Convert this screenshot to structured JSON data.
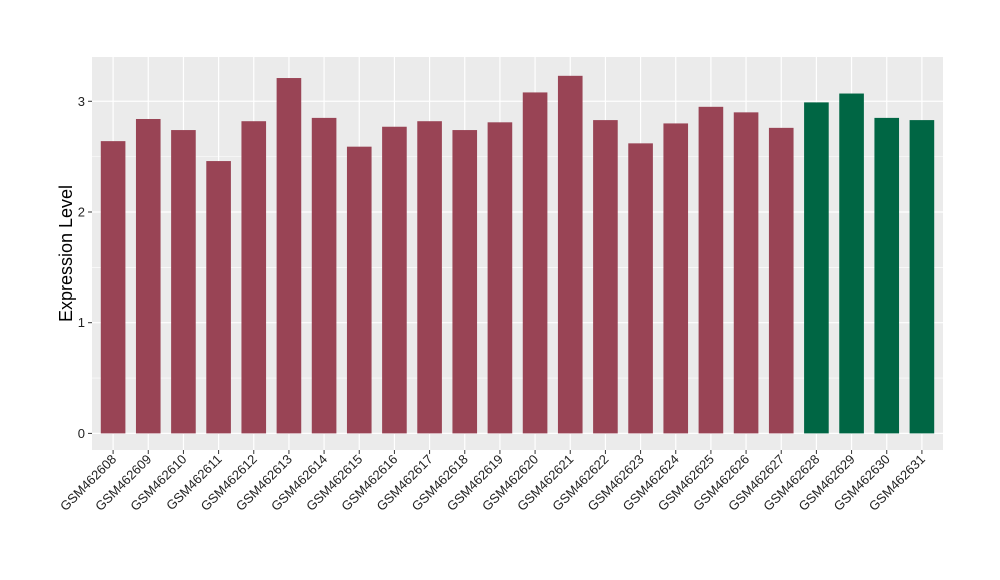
{
  "chart_data": {
    "type": "bar",
    "title": "",
    "xlabel": "",
    "ylabel": "Expression Level",
    "ylim": [
      -0.15,
      3.4
    ],
    "yticks": [
      0,
      1,
      2,
      3
    ],
    "grid": true,
    "background": "#EBEBEB",
    "gridline_color": "#FFFFFF",
    "colors": {
      "group1": "#994455",
      "group2": "#006644"
    },
    "categories": [
      "GSM462608",
      "GSM462609",
      "GSM462610",
      "GSM462611",
      "GSM462612",
      "GSM462613",
      "GSM462614",
      "GSM462615",
      "GSM462616",
      "GSM462617",
      "GSM462618",
      "GSM462619",
      "GSM462620",
      "GSM462621",
      "GSM462622",
      "GSM462623",
      "GSM462624",
      "GSM462625",
      "GSM462626",
      "GSM462627",
      "GSM462628",
      "GSM462629",
      "GSM462630",
      "GSM462631"
    ],
    "values": [
      2.64,
      2.84,
      2.74,
      2.46,
      2.82,
      3.21,
      2.85,
      2.59,
      2.77,
      2.82,
      2.74,
      2.81,
      3.08,
      3.23,
      2.83,
      2.62,
      2.8,
      2.95,
      2.9,
      2.76,
      2.99,
      3.07,
      2.85,
      2.83
    ],
    "groups": [
      "group1",
      "group1",
      "group1",
      "group1",
      "group1",
      "group1",
      "group1",
      "group1",
      "group1",
      "group1",
      "group1",
      "group1",
      "group1",
      "group1",
      "group1",
      "group1",
      "group1",
      "group1",
      "group1",
      "group1",
      "group2",
      "group2",
      "group2",
      "group2"
    ]
  }
}
